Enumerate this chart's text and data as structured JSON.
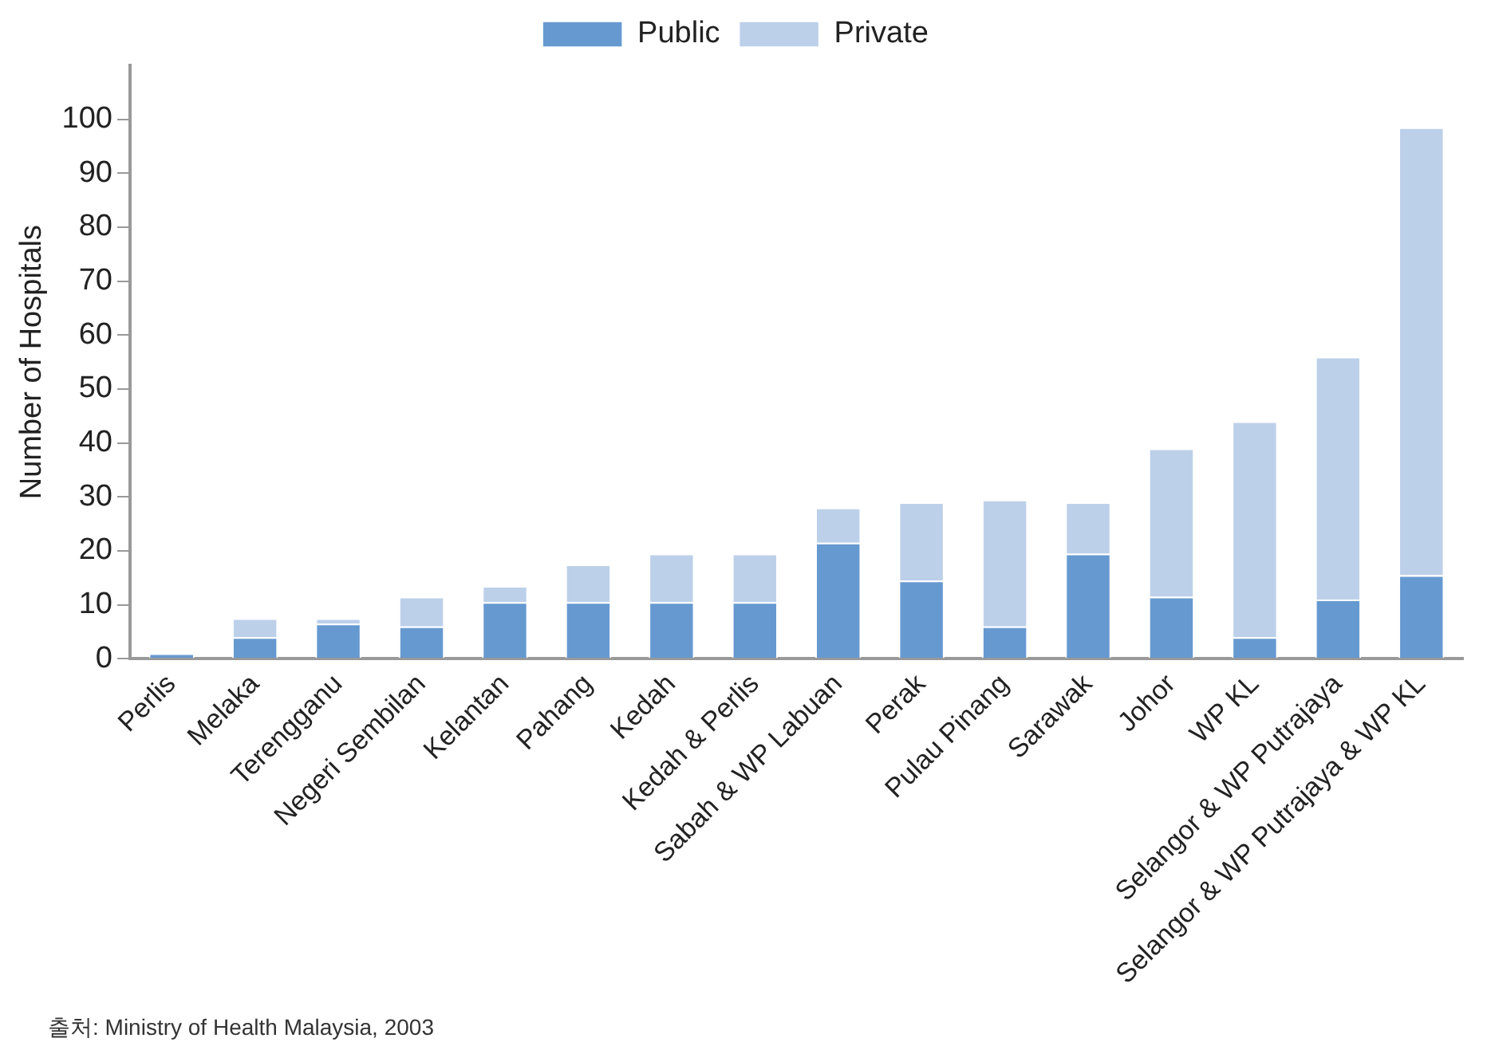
{
  "chart_data": {
    "type": "bar",
    "stacked": true,
    "ylabel": "Number of Hospitals",
    "categories": [
      "Perlis",
      "Melaka",
      "Terengganu",
      "Negeri Sembilan",
      "Kelantan",
      "Pahang",
      "Kedah",
      "Kedah & Perlis",
      "Sabah & WP Labuan",
      "Perak",
      "Pulau Pinang",
      "Sarawak",
      "Johor",
      "WP KL",
      "Selangor & WP Putrajaya",
      "Selangor & WP Putrajaya & WP KL"
    ],
    "series": [
      {
        "name": "Public",
        "color": "#6699d0",
        "values": [
          1,
          4,
          6.5,
          6,
          10.5,
          10.5,
          10.5,
          10.5,
          21.5,
          14.5,
          6,
          19.5,
          11.5,
          4,
          11,
          15.5
        ]
      },
      {
        "name": "Private",
        "color": "#bdd0ea",
        "values": [
          0,
          3.5,
          1,
          5.5,
          3,
          7,
          9,
          9,
          6.5,
          14.5,
          23.5,
          9.5,
          27.5,
          40,
          45,
          83
        ]
      }
    ],
    "ylim": [
      0,
      110
    ],
    "yticks": [
      0,
      10,
      20,
      30,
      40,
      50,
      60,
      70,
      80,
      90,
      100
    ],
    "grid": false,
    "legend": "top",
    "annotations": [
      "출처: Ministry of Health Malaysia, 2003"
    ]
  }
}
